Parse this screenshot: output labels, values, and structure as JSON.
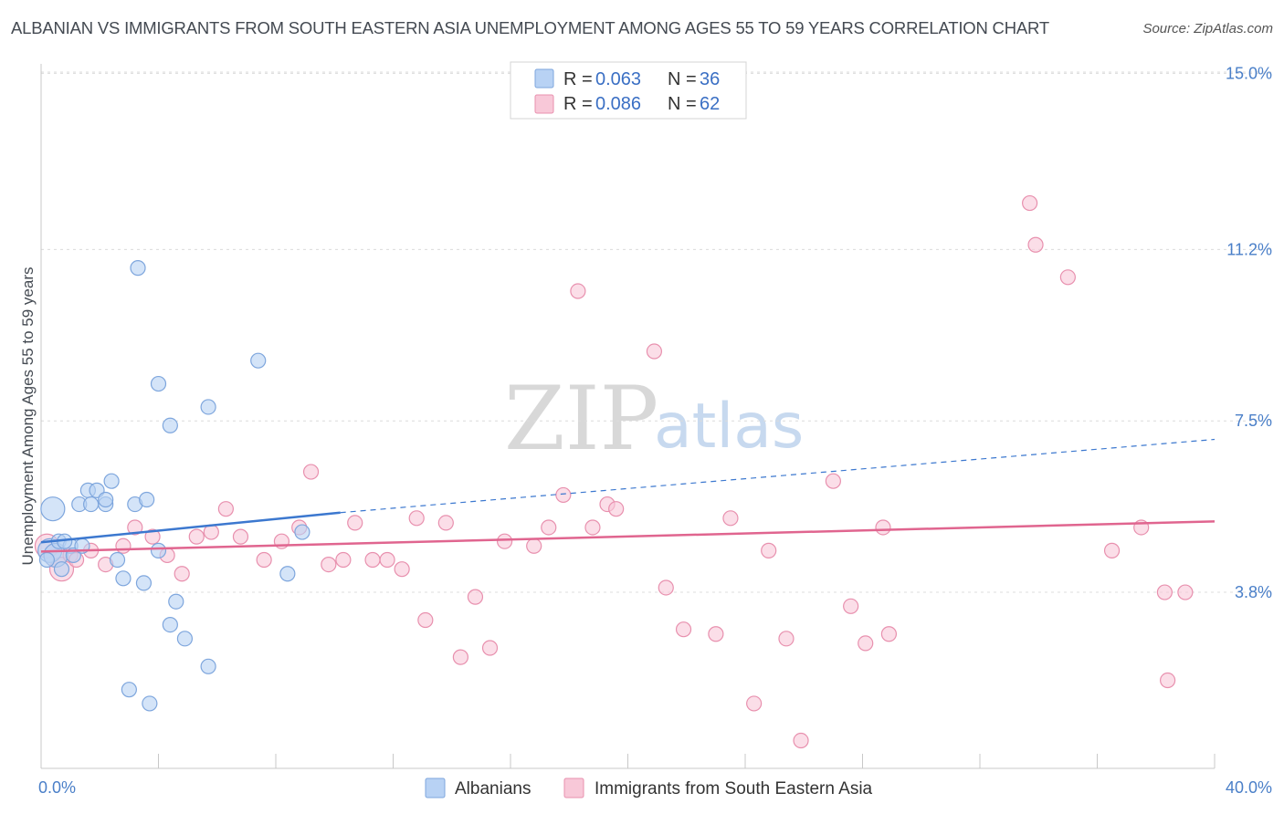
{
  "header": {
    "title": "ALBANIAN VS IMMIGRANTS FROM SOUTH EASTERN ASIA UNEMPLOYMENT AMONG AGES 55 TO 59 YEARS CORRELATION CHART",
    "source": "Source: ZipAtlas.com"
  },
  "watermark": {
    "zip": "ZIP",
    "atlas": "atlas"
  },
  "legend": {
    "rows": [
      {
        "r_label": "R =",
        "r_value": "0.063",
        "n_label": "N =",
        "n_value": "36"
      },
      {
        "r_label": "R =",
        "r_value": "0.086",
        "n_label": "N =",
        "n_value": "62"
      }
    ]
  },
  "bottom_legend": {
    "albanians": "Albanians",
    "sea": "Immigrants from South Eastern Asia"
  },
  "colors": {
    "albanian_fill": "#b8d2f4",
    "albanian_stroke": "#7ea6dd",
    "albanian_line": "#3c78cf",
    "sea_fill": "#f8c8d8",
    "sea_stroke": "#e890ae",
    "sea_line": "#e0658f",
    "tick_label": "#4a7fc8",
    "grid": "#dcdcdc"
  },
  "chart_data": {
    "type": "scatter",
    "title": "ALBANIAN VS IMMIGRANTS FROM SOUTH EASTERN ASIA UNEMPLOYMENT AMONG AGES 55 TO 59 YEARS CORRELATION CHART",
    "xlabel": "",
    "ylabel": "Unemployment Among Ages 55 to 59 years",
    "xlim": [
      0,
      40
    ],
    "ylim": [
      0,
      15.5
    ],
    "x_tick_labels": [
      "0.0%",
      "40.0%"
    ],
    "y_ticks": [
      3.8,
      7.5,
      11.2,
      15.0
    ],
    "y_tick_labels": [
      "3.8%",
      "7.5%",
      "11.2%",
      "15.0%"
    ],
    "grid": true,
    "legend_position": "top-center",
    "series": [
      {
        "name": "Albanians",
        "r": 0.063,
        "n": 36,
        "trend": {
          "x0": 0,
          "y0": 4.88,
          "x1": 10.2,
          "y1": 5.52,
          "dashed_to_x": 40,
          "dashed_to_y": 7.1
        },
        "points": [
          [
            0.3,
            4.7
          ],
          [
            0.4,
            5.6
          ],
          [
            0.5,
            4.6
          ],
          [
            0.6,
            4.9
          ],
          [
            0.7,
            4.3
          ],
          [
            1.0,
            4.8
          ],
          [
            1.1,
            4.6
          ],
          [
            1.3,
            5.7
          ],
          [
            1.4,
            4.8
          ],
          [
            1.6,
            6.0
          ],
          [
            1.7,
            5.7
          ],
          [
            1.9,
            6.0
          ],
          [
            2.2,
            5.7
          ],
          [
            2.2,
            5.8
          ],
          [
            2.4,
            6.2
          ],
          [
            2.6,
            4.5
          ],
          [
            2.8,
            4.1
          ],
          [
            3.0,
            1.7
          ],
          [
            3.2,
            5.7
          ],
          [
            3.3,
            10.8
          ],
          [
            3.5,
            4.0
          ],
          [
            3.6,
            5.8
          ],
          [
            3.7,
            1.4
          ],
          [
            4.0,
            4.7
          ],
          [
            4.0,
            8.3
          ],
          [
            4.4,
            7.4
          ],
          [
            4.4,
            3.1
          ],
          [
            4.6,
            3.6
          ],
          [
            4.9,
            2.8
          ],
          [
            5.7,
            2.2
          ],
          [
            5.7,
            7.8
          ],
          [
            7.4,
            8.8
          ],
          [
            8.4,
            4.2
          ],
          [
            8.9,
            5.1
          ],
          [
            0.2,
            4.5
          ],
          [
            0.8,
            4.9
          ]
        ]
      },
      {
        "name": "Immigrants from South Eastern Asia",
        "r": 0.086,
        "n": 62,
        "trend": {
          "x0": 0,
          "y0": 4.68,
          "x1": 40,
          "y1": 5.33
        },
        "points": [
          [
            0.2,
            4.8
          ],
          [
            0.5,
            4.6
          ],
          [
            0.7,
            4.3
          ],
          [
            1.0,
            4.6
          ],
          [
            1.2,
            4.5
          ],
          [
            1.7,
            4.7
          ],
          [
            2.2,
            4.4
          ],
          [
            2.8,
            4.8
          ],
          [
            3.2,
            5.2
          ],
          [
            3.8,
            5.0
          ],
          [
            4.3,
            4.6
          ],
          [
            4.8,
            4.2
          ],
          [
            5.3,
            5.0
          ],
          [
            5.8,
            5.1
          ],
          [
            6.3,
            5.6
          ],
          [
            6.8,
            5.0
          ],
          [
            7.6,
            4.5
          ],
          [
            8.2,
            4.9
          ],
          [
            8.8,
            5.2
          ],
          [
            9.2,
            6.4
          ],
          [
            9.8,
            4.4
          ],
          [
            10.3,
            4.5
          ],
          [
            10.7,
            5.3
          ],
          [
            11.3,
            4.5
          ],
          [
            11.8,
            4.5
          ],
          [
            12.3,
            4.3
          ],
          [
            12.8,
            5.4
          ],
          [
            13.1,
            3.2
          ],
          [
            13.8,
            5.3
          ],
          [
            14.3,
            2.4
          ],
          [
            14.8,
            3.7
          ],
          [
            15.3,
            2.6
          ],
          [
            15.8,
            4.9
          ],
          [
            16.8,
            4.8
          ],
          [
            17.3,
            5.2
          ],
          [
            17.8,
            5.9
          ],
          [
            18.3,
            10.3
          ],
          [
            18.8,
            5.2
          ],
          [
            19.3,
            5.7
          ],
          [
            19.6,
            5.6
          ],
          [
            20.9,
            9.0
          ],
          [
            21.3,
            3.9
          ],
          [
            21.9,
            3.0
          ],
          [
            23.0,
            2.9
          ],
          [
            23.5,
            5.4
          ],
          [
            24.3,
            1.4
          ],
          [
            24.8,
            4.7
          ],
          [
            25.4,
            2.8
          ],
          [
            25.9,
            0.6
          ],
          [
            27.0,
            6.2
          ],
          [
            27.6,
            3.5
          ],
          [
            28.1,
            2.7
          ],
          [
            28.7,
            5.2
          ],
          [
            28.9,
            2.9
          ],
          [
            33.7,
            12.2
          ],
          [
            33.9,
            11.3
          ],
          [
            35.0,
            10.6
          ],
          [
            36.5,
            4.7
          ],
          [
            37.5,
            5.2
          ],
          [
            38.4,
            1.9
          ],
          [
            38.3,
            3.8
          ],
          [
            39.0,
            3.8
          ]
        ]
      }
    ]
  }
}
